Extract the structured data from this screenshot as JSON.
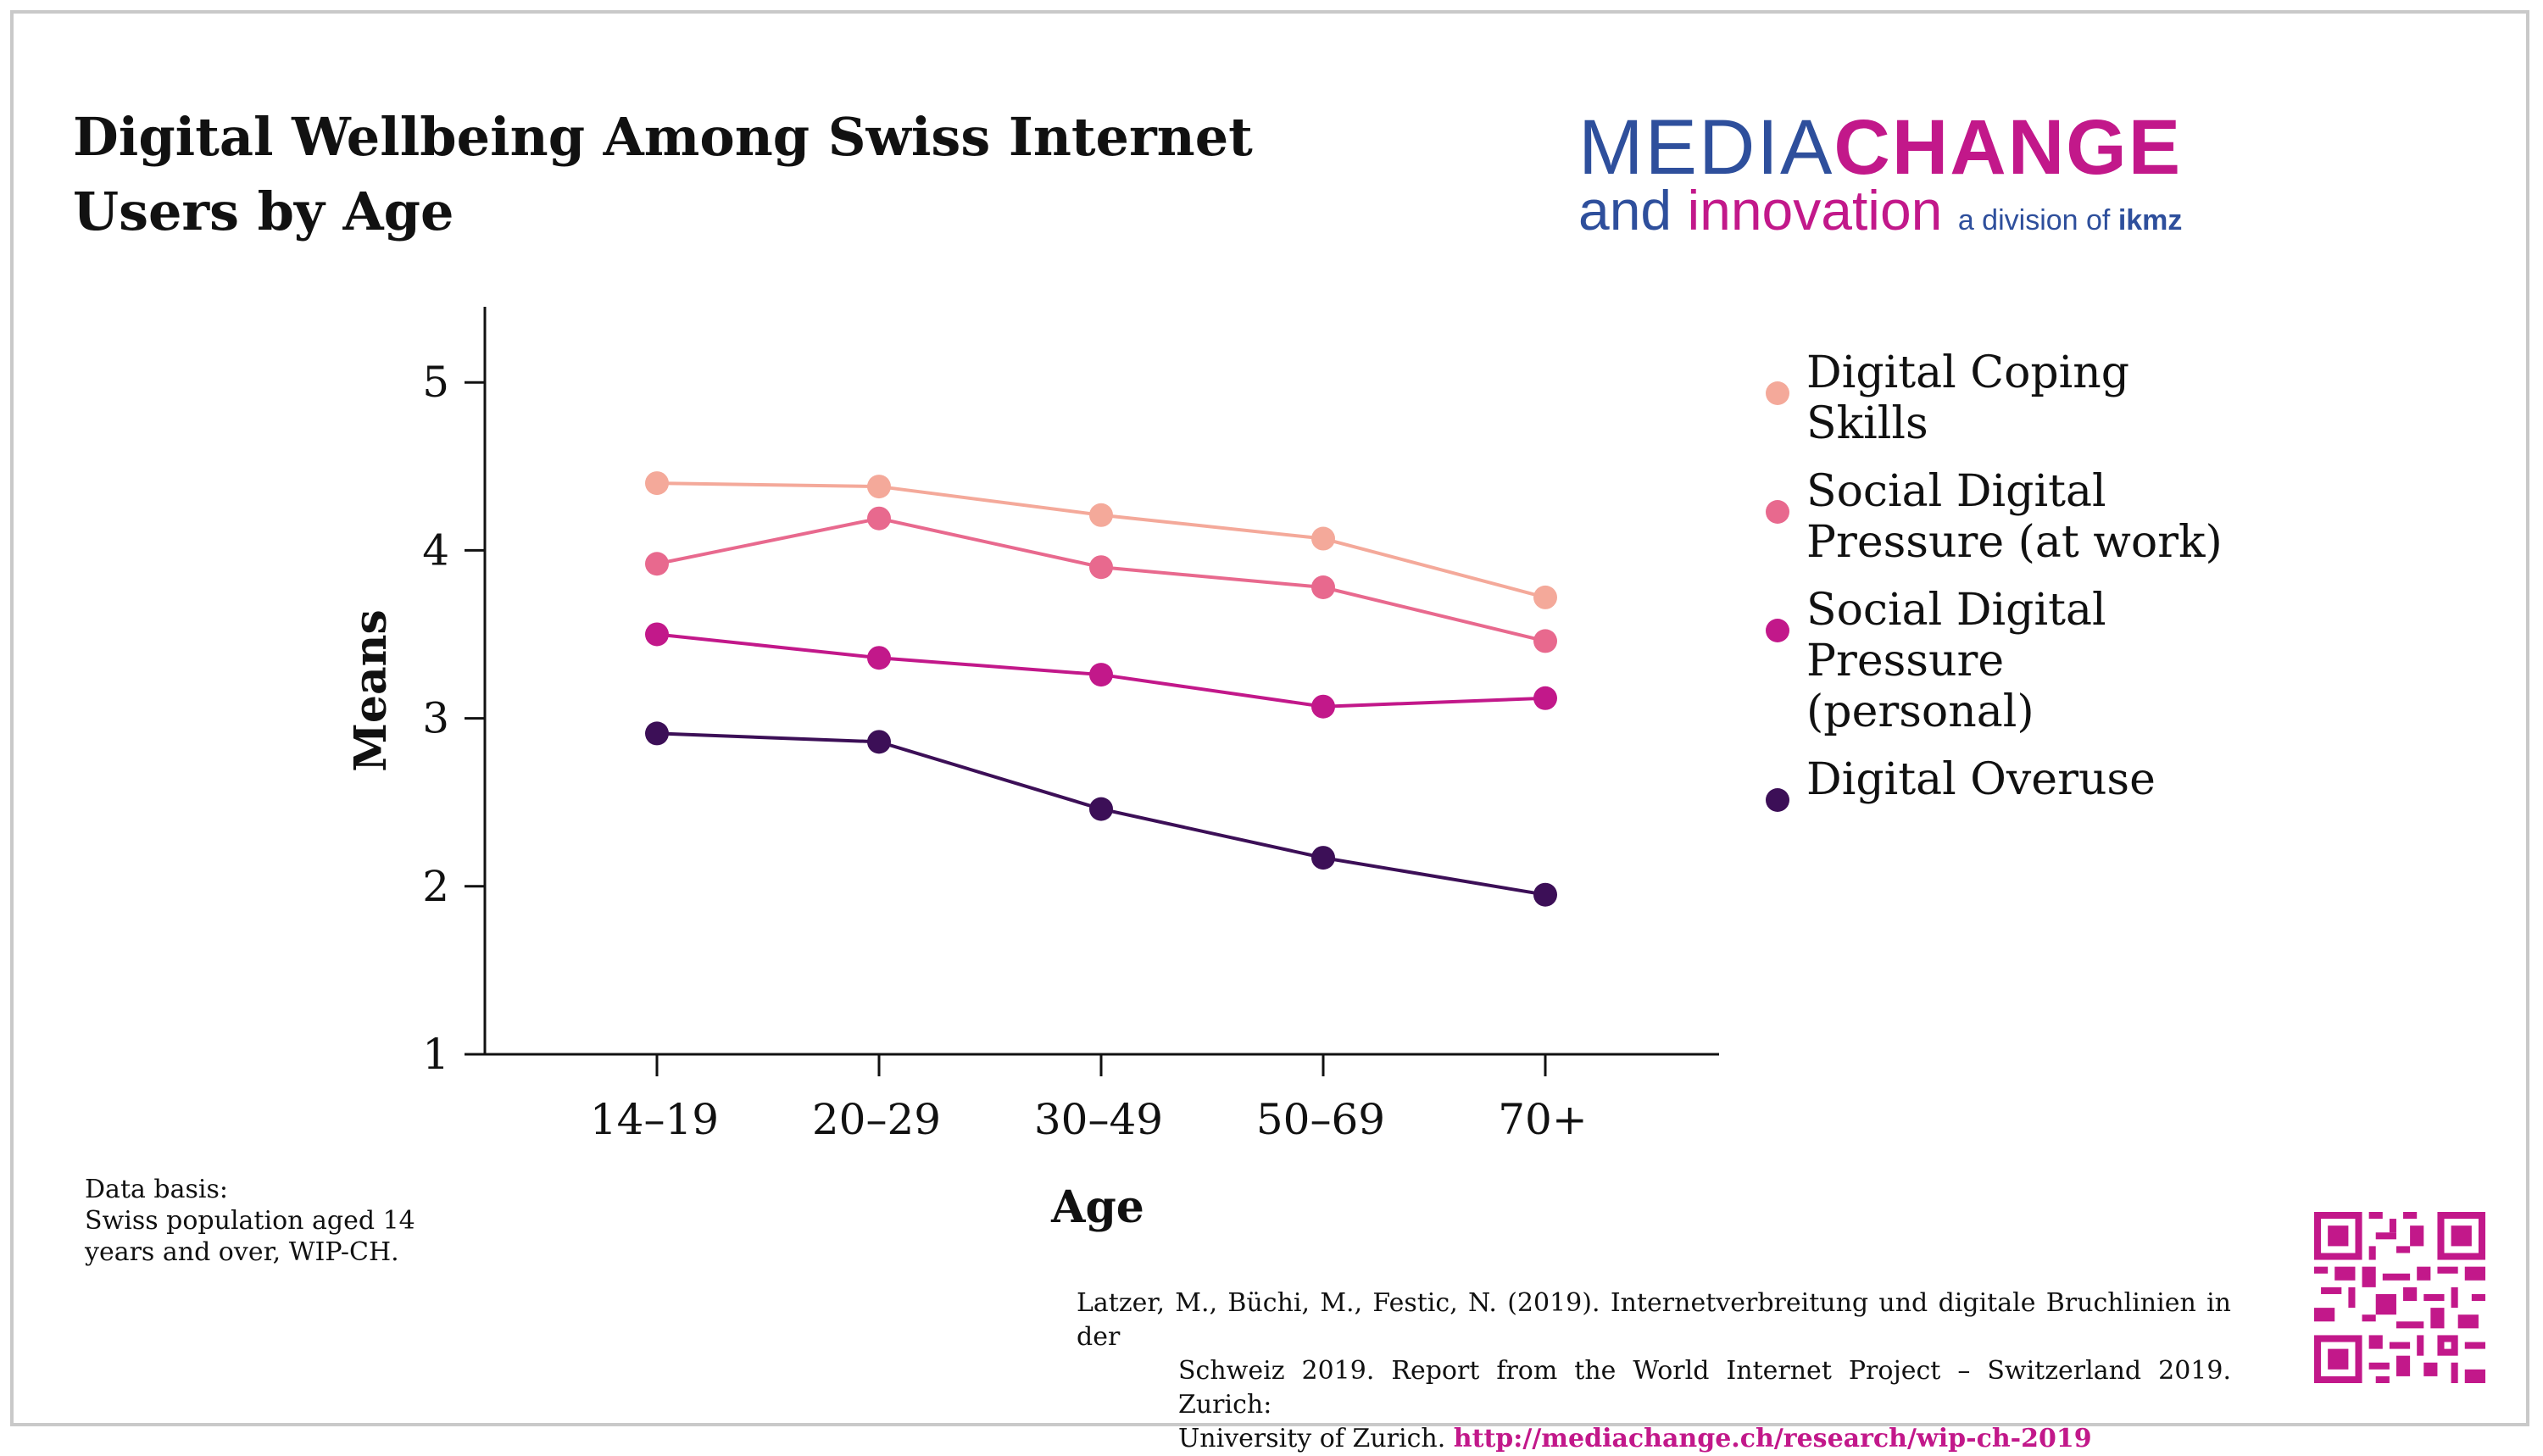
{
  "title": {
    "line1": "Digital Wellbeing Among Swiss Internet",
    "line2": "Users by Age"
  },
  "logo": {
    "media": "MEDIA",
    "change": "CHANGE",
    "and": "and ",
    "innovation": "innovation",
    "division": "a division of ",
    "ikmz": "ikmz"
  },
  "colors": {
    "digital_coping_skills": "#f4a99a",
    "social_digital_pressure_work": "#e8698e",
    "social_digital_pressure_personal": "#c2188a",
    "digital_overuse": "#3c0f57",
    "brand_blue": "#2e4f9c",
    "brand_magenta": "#c2188a"
  },
  "chart_data": {
    "type": "line",
    "xlabel": "Age",
    "ylabel": "Means",
    "categories": [
      "14–19",
      "20–29",
      "30–49",
      "50–69",
      "70+"
    ],
    "yticks": [
      "1",
      "2",
      "3",
      "4",
      "5"
    ],
    "ylim": [
      1,
      5.45
    ],
    "grid": false,
    "legend_position": "right",
    "series": [
      {
        "name": "Digital Coping Skills",
        "color": "#f4a99a",
        "values": [
          4.4,
          4.38,
          4.21,
          4.07,
          3.72
        ]
      },
      {
        "name": "Social Digital Pressure (at work)",
        "color": "#e8698e",
        "values": [
          3.92,
          4.19,
          3.9,
          3.78,
          3.46
        ]
      },
      {
        "name": "Social Digital Pressure (personal)",
        "color": "#c2188a",
        "values": [
          3.5,
          3.36,
          3.26,
          3.07,
          3.12
        ]
      },
      {
        "name": "Digital Overuse",
        "color": "#3c0f57",
        "values": [
          2.91,
          2.86,
          2.46,
          2.17,
          1.95
        ]
      }
    ]
  },
  "legend": {
    "items": [
      {
        "label_lines": [
          "Digital Coping",
          "Skills"
        ]
      },
      {
        "label_lines": [
          "Social Digital",
          "Pressure (at work)"
        ]
      },
      {
        "label_lines": [
          "Social Digital",
          "Pressure",
          "(personal)"
        ]
      },
      {
        "label_lines": [
          "Digital Overuse"
        ]
      }
    ]
  },
  "data_basis": {
    "line1": "Data basis:",
    "line2": "Swiss population aged 14",
    "line3": "years and over, WIP-CH."
  },
  "citation": {
    "line1": "Latzer, M., Büchi, M., Festic, N. (2019). Internetverbreitung und digitale Bruchlinien in der",
    "line2": "Schweiz 2019. Report from the World Internet Project – Switzerland 2019. Zurich:",
    "line3_text": "University of Zurich. ",
    "link": "http://mediachange.ch/research/wip-ch-2019"
  }
}
